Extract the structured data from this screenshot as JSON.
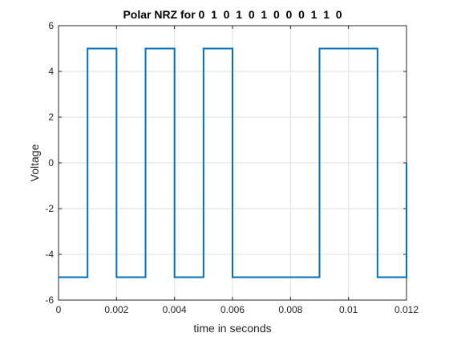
{
  "chart_data": {
    "type": "line",
    "title": "Polar NRZ for 0  1  0  1  0  1  0  0  0  1  1  0",
    "xlabel": "time in seconds",
    "ylabel": "Voltage",
    "xlim": [
      0,
      0.012
    ],
    "ylim": [
      -6,
      6
    ],
    "xticks": [
      0,
      0.002,
      0.004,
      0.006,
      0.008,
      0.01,
      0.012
    ],
    "xtick_labels": [
      "0",
      "0.002",
      "0.004",
      "0.006",
      "0.008",
      "0.01",
      "0.012"
    ],
    "yticks": [
      -6,
      -4,
      -2,
      0,
      2,
      4,
      6
    ],
    "ytick_labels": [
      "-6",
      "-4",
      "-2",
      "0",
      "2",
      "4",
      "6"
    ],
    "grid": true,
    "series": [
      {
        "line_color": "#0072BD",
        "x": [
          0,
          0.001,
          0.001,
          0.002,
          0.002,
          0.003,
          0.003,
          0.004,
          0.004,
          0.005,
          0.005,
          0.006,
          0.006,
          0.009,
          0.009,
          0.011,
          0.011,
          0.012,
          0.012
        ],
        "y": [
          -5,
          -5,
          5,
          5,
          -5,
          -5,
          5,
          5,
          -5,
          -5,
          5,
          5,
          -5,
          -5,
          5,
          5,
          -5,
          -5,
          0
        ]
      }
    ]
  }
}
